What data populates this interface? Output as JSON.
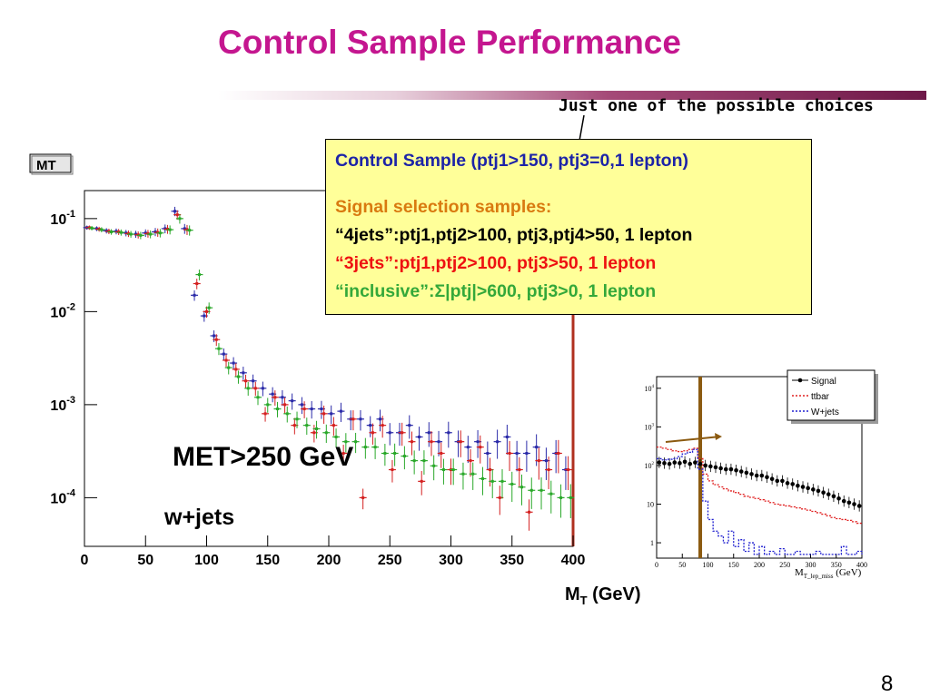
{
  "slide": {
    "title": "Control Sample Performance",
    "note": "Just one of the possible choices",
    "page_number": "8",
    "x_unit_label": {
      "main": "M",
      "sub": "T",
      "rest": " (GeV)"
    }
  },
  "info_box": {
    "line1": "Control Sample (ptj1>150, ptj3=0,1 lepton)",
    "line2": "Signal selection samples:",
    "line3": "“4jets”:ptj1,ptj2>100, ptj3,ptj4>50, 1 lepton",
    "line4": "“3jets”:ptj1,ptj2>100, ptj3>50, 1 lepton",
    "line5": "“inclusive”:Σ|ptj|>600, ptj3>0, 1 lepton"
  },
  "labels": {
    "met": "MET>250 GeV",
    "sample": "w+jets"
  },
  "colors": {
    "title": "#c4168f",
    "control": "#1d24a8",
    "signal_header": "#d97a10",
    "four_jets": "#000000",
    "three_jets": "#ee1111",
    "inclusive": "#34a83a",
    "box_bg": "#ffff99",
    "cut_line": "#8b5a10"
  },
  "chart_data": [
    {
      "type": "scatter",
      "histogram_name": "MT",
      "log_y": true,
      "xlim": [
        0,
        400
      ],
      "ylim": [
        3e-05,
        0.2
      ],
      "x_ticks": [
        "0",
        "50",
        "100",
        "150",
        "200",
        "250",
        "300",
        "350",
        "400"
      ],
      "y_ticks": [
        {
          "base": "10",
          "exp": "-1",
          "value": 0.1
        },
        {
          "base": "10",
          "exp": "-2",
          "value": 0.01
        },
        {
          "base": "10",
          "exp": "-3",
          "value": 0.001
        },
        {
          "base": "10",
          "exp": "-4",
          "value": 0.0001
        }
      ],
      "series": [
        {
          "color": "#2a2aa8",
          "x": [
            2,
            10,
            18,
            26,
            34,
            42,
            50,
            58,
            66,
            74,
            82,
            90,
            98,
            106,
            114,
            122,
            130,
            138,
            146,
            154,
            162,
            170,
            178,
            186,
            194,
            202,
            210,
            218,
            226,
            234,
            242,
            250,
            258,
            266,
            274,
            282,
            290,
            298,
            306,
            314,
            322,
            330,
            338,
            346,
            354,
            362,
            370,
            378,
            386,
            394
          ],
          "y": [
            0.08,
            0.078,
            0.074,
            0.073,
            0.07,
            0.068,
            0.07,
            0.072,
            0.078,
            0.12,
            0.078,
            0.015,
            0.009,
            0.0055,
            0.0035,
            0.0028,
            0.0022,
            0.0018,
            0.0015,
            0.0013,
            0.0012,
            0.0011,
            0.001,
            0.0009,
            0.0009,
            0.0008,
            0.00085,
            0.0007,
            0.0007,
            0.0006,
            0.0007,
            0.0005,
            0.0005,
            0.0006,
            0.00045,
            0.0005,
            0.0004,
            0.0005,
            0.0004,
            0.00035,
            0.0004,
            0.0003,
            0.0004,
            0.00045,
            0.0003,
            0.0003,
            0.00035,
            0.00025,
            0.0003,
            0.0002
          ]
        },
        {
          "color": "#d42020",
          "x": [
            4,
            12,
            20,
            28,
            36,
            44,
            52,
            60,
            68,
            76,
            84,
            92,
            100,
            108,
            116,
            124,
            132,
            140,
            148,
            156,
            164,
            172,
            180,
            188,
            196,
            204,
            212,
            220,
            228,
            236,
            244,
            252,
            260,
            268,
            276,
            284,
            292,
            300,
            308,
            316,
            324,
            332,
            340,
            348,
            356,
            364,
            372,
            380,
            388,
            396
          ],
          "y": [
            0.08,
            0.077,
            0.073,
            0.072,
            0.069,
            0.067,
            0.069,
            0.071,
            0.077,
            0.11,
            0.076,
            0.02,
            0.01,
            0.005,
            0.003,
            0.0024,
            0.0018,
            0.0015,
            0.0008,
            0.0012,
            0.001,
            0.0006,
            0.0009,
            0.0005,
            0.0008,
            0.0006,
            0.0003,
            0.0007,
            0.0001,
            0.0005,
            0.0006,
            0.0002,
            0.0005,
            0.0004,
            0.00015,
            0.0004,
            0.0003,
            0.0002,
            0.0004,
            0.00025,
            0.00035,
            0.0002,
            0.0001,
            0.0003,
            0.0002,
            7e-05,
            0.00025,
            0.0002,
            0.0003,
            0.0002
          ]
        },
        {
          "color": "#2aa82a",
          "x": [
            6,
            14,
            22,
            30,
            38,
            46,
            54,
            62,
            70,
            78,
            86,
            94,
            102,
            110,
            118,
            126,
            134,
            142,
            150,
            158,
            166,
            174,
            182,
            190,
            198,
            206,
            214,
            222,
            230,
            238,
            246,
            254,
            262,
            270,
            278,
            286,
            294,
            302,
            310,
            318,
            326,
            334,
            342,
            350,
            358,
            366,
            374,
            382,
            390,
            398
          ],
          "y": [
            0.079,
            0.076,
            0.072,
            0.071,
            0.068,
            0.066,
            0.068,
            0.07,
            0.076,
            0.1,
            0.075,
            0.025,
            0.011,
            0.004,
            0.0025,
            0.002,
            0.0015,
            0.0012,
            0.001,
            0.0009,
            0.0008,
            0.0007,
            0.0006,
            0.00055,
            0.0005,
            0.00045,
            0.0004,
            0.0004,
            0.00035,
            0.00035,
            0.0003,
            0.0003,
            0.00028,
            0.00025,
            0.00025,
            0.00022,
            0.0002,
            0.0002,
            0.00018,
            0.00018,
            0.00016,
            0.00015,
            0.00015,
            0.00014,
            0.00013,
            0.00012,
            0.00012,
            0.00011,
            0.0001,
            0.0001
          ]
        }
      ]
    },
    {
      "type": "line",
      "xlabel": {
        "base": "M",
        "sub": "T_lep_miss",
        "rest": " (GeV)"
      },
      "log_y": true,
      "xlim": [
        0,
        400
      ],
      "ylim": [
        0.4,
        20000
      ],
      "x_ticks": [
        "0",
        "50",
        "100",
        "150",
        "200",
        "250",
        "300",
        "350",
        "400"
      ],
      "y_ticks": [
        {
          "base": "10",
          "exp": "4",
          "value": 10000
        },
        {
          "base": "10",
          "exp": "3",
          "value": 1000
        },
        {
          "base": "10",
          "exp": "2",
          "value": 100
        },
        {
          "base": "10",
          "exp": "",
          "value": 10
        },
        {
          "base": "1",
          "exp": "",
          "value": 1
        }
      ],
      "cut_value": 85,
      "series": [
        {
          "name": "Signal",
          "color": "#000000",
          "style": "markers",
          "x": [
            5,
            15,
            25,
            35,
            45,
            55,
            65,
            75,
            85,
            95,
            105,
            115,
            125,
            135,
            145,
            155,
            165,
            175,
            185,
            195,
            205,
            215,
            225,
            235,
            245,
            255,
            265,
            275,
            285,
            295,
            305,
            315,
            325,
            335,
            345,
            355,
            365,
            375,
            385,
            395
          ],
          "y": [
            120,
            115,
            110,
            120,
            115,
            125,
            110,
            120,
            110,
            100,
            95,
            90,
            85,
            80,
            80,
            75,
            70,
            65,
            60,
            55,
            55,
            50,
            45,
            40,
            40,
            35,
            33,
            30,
            28,
            26,
            24,
            22,
            20,
            18,
            16,
            14,
            12,
            11,
            10,
            9
          ]
        },
        {
          "name": "ttbar",
          "color": "#e02020",
          "style": "dotted",
          "x": [
            0,
            10,
            20,
            30,
            40,
            50,
            60,
            70,
            80,
            90,
            100,
            110,
            120,
            130,
            140,
            150,
            160,
            170,
            180,
            190,
            200,
            210,
            220,
            230,
            240,
            250,
            260,
            270,
            280,
            290,
            300,
            310,
            320,
            330,
            340,
            350,
            360,
            370,
            380,
            390,
            400
          ],
          "y": [
            300,
            280,
            260,
            240,
            230,
            240,
            260,
            280,
            150,
            60,
            40,
            32,
            28,
            25,
            22,
            20,
            18,
            16,
            15,
            14,
            13,
            12,
            11,
            10,
            9.5,
            9,
            8.5,
            8,
            7.5,
            7,
            6.5,
            6,
            5.5,
            5,
            4.5,
            4.2,
            4,
            3.8,
            3.5,
            3.2,
            3
          ]
        },
        {
          "name": "W+jets",
          "color": "#2020d0",
          "style": "dotted",
          "x": [
            0,
            10,
            20,
            30,
            40,
            50,
            60,
            70,
            80,
            90,
            100,
            110,
            120,
            130,
            140,
            150,
            160,
            170,
            180,
            190,
            200,
            210,
            220,
            230,
            240,
            250,
            260,
            270,
            280,
            290,
            300,
            310,
            320,
            330,
            340,
            350,
            360,
            370,
            380,
            390,
            400
          ],
          "y": [
            150,
            140,
            145,
            150,
            170,
            200,
            220,
            260,
            80,
            12,
            4,
            2,
            1.5,
            1,
            2,
            0.8,
            1.2,
            0.6,
            1,
            0.5,
            0.8,
            0.5,
            0.6,
            0.5,
            0.7,
            0.5,
            0.5,
            0.6,
            0.5,
            0.5,
            0.5,
            0.6,
            0.5,
            0.5,
            0.5,
            0.5,
            0.8,
            0.5,
            0.5,
            0.6,
            0.5
          ]
        }
      ]
    }
  ]
}
